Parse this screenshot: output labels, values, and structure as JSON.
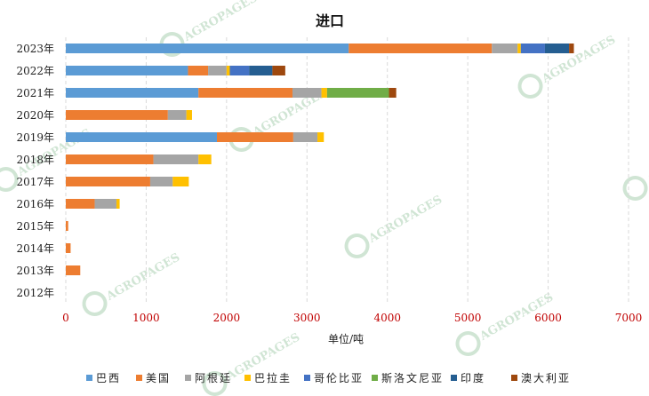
{
  "chart_data": {
    "type": "bar",
    "orientation": "horizontal",
    "stacked": true,
    "title": "进口",
    "xlabel": "单位/吨",
    "ylabel": "",
    "xlim": [
      0,
      7000
    ],
    "xticks": [
      0,
      1000,
      2000,
      3000,
      4000,
      5000,
      6000,
      7000
    ],
    "grid": "vertical-dashed",
    "legend_position": "bottom",
    "categories": [
      "2023年",
      "2022年",
      "2021年",
      "2020年",
      "2019年",
      "2018年",
      "2017年",
      "2016年",
      "2015年",
      "2014年",
      "2013年",
      "2012年"
    ],
    "series": [
      {
        "name": "巴西",
        "color": "#5b9bd5",
        "values": [
          3520,
          1520,
          1650,
          0,
          1880,
          0,
          0,
          0,
          0,
          0,
          0,
          0
        ]
      },
      {
        "name": "美国",
        "color": "#ed7d31",
        "values": [
          1780,
          250,
          1170,
          1270,
          950,
          1090,
          1050,
          360,
          30,
          60,
          180,
          0
        ]
      },
      {
        "name": "阿根廷",
        "color": "#a5a5a5",
        "values": [
          320,
          230,
          360,
          230,
          300,
          560,
          280,
          270,
          0,
          0,
          0,
          0
        ]
      },
      {
        "name": "巴拉圭",
        "color": "#ffc000",
        "values": [
          40,
          40,
          70,
          70,
          80,
          160,
          200,
          40,
          0,
          0,
          0,
          0
        ]
      },
      {
        "name": "哥伦比亚",
        "color": "#4472c4",
        "values": [
          300,
          240,
          0,
          0,
          0,
          0,
          0,
          0,
          0,
          0,
          0,
          0
        ]
      },
      {
        "name": "斯洛文尼亚",
        "color": "#70ad47",
        "values": [
          0,
          0,
          770,
          0,
          0,
          0,
          0,
          0,
          0,
          0,
          0,
          0
        ]
      },
      {
        "name": "印度",
        "color": "#255e91",
        "values": [
          300,
          290,
          0,
          0,
          0,
          0,
          0,
          0,
          0,
          0,
          0,
          0
        ]
      },
      {
        "name": "澳大利亚",
        "color": "#9e480e",
        "values": [
          60,
          160,
          90,
          0,
          0,
          0,
          0,
          0,
          0,
          0,
          0,
          0
        ]
      }
    ]
  },
  "watermark": {
    "text": "AGROPAGES",
    "color": "#5aa469"
  }
}
